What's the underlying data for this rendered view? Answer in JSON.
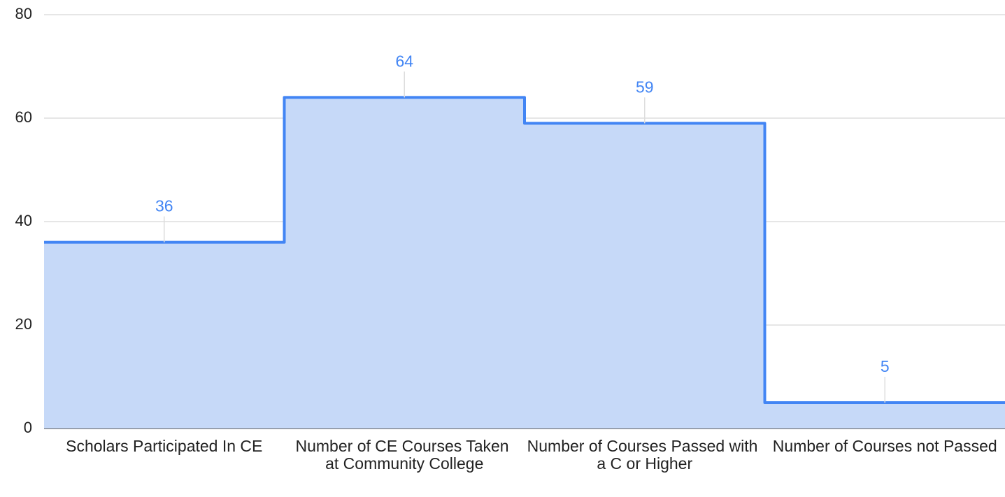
{
  "chart_data": {
    "type": "stepped-area",
    "categories": [
      "Scholars Participated In CE",
      "Number of CE Courses Taken at Community College",
      "Number of Courses Passed with a C or Higher",
      "Number of Courses not Passed"
    ],
    "values": [
      36,
      64,
      59,
      5
    ],
    "color": "#4285f4",
    "fill": "#c6d9f8",
    "ylim": [
      0,
      80
    ],
    "yticks": [
      0,
      20,
      40,
      60,
      80
    ],
    "grid": true
  }
}
